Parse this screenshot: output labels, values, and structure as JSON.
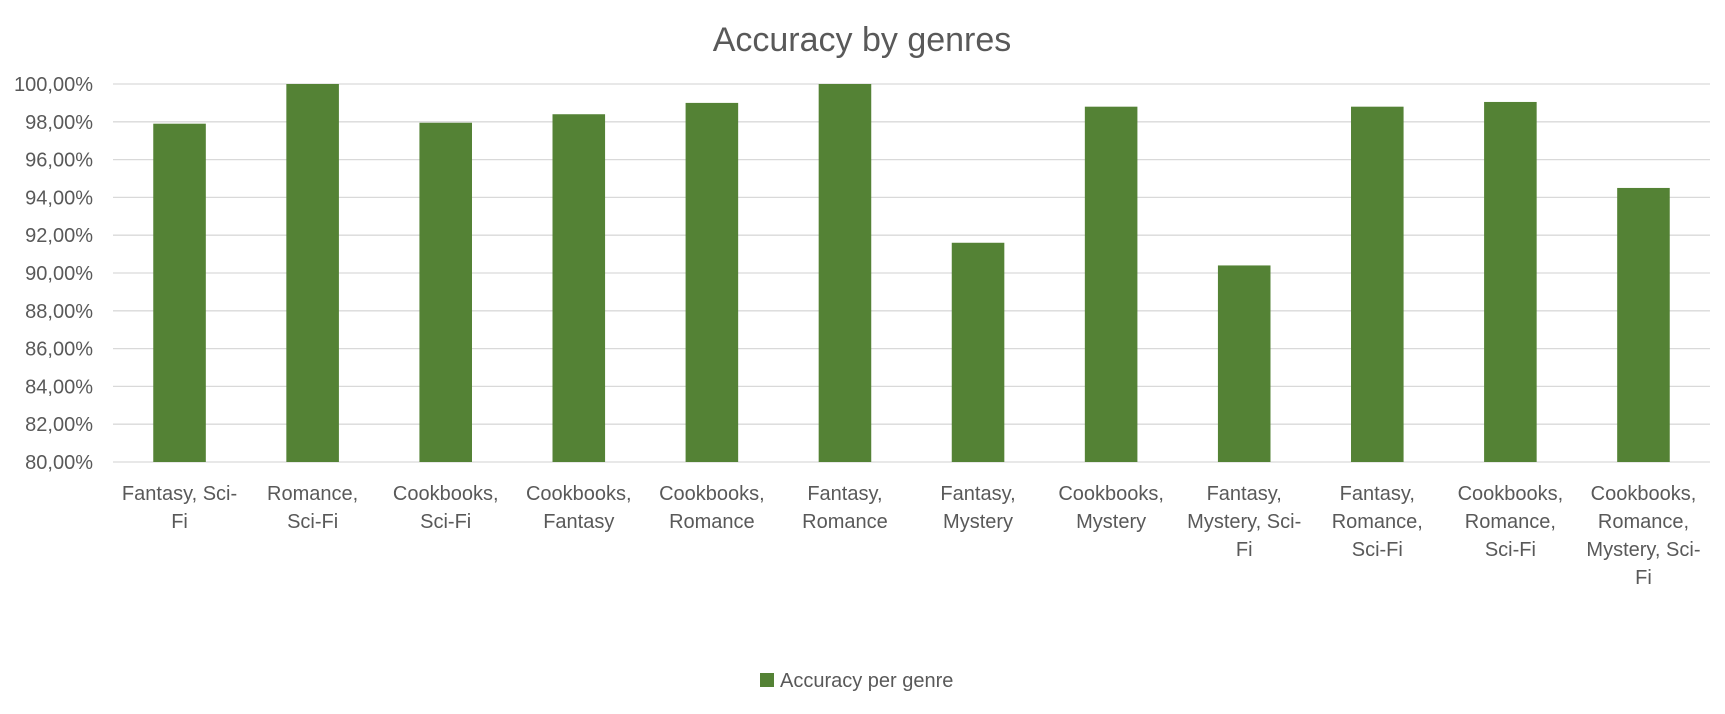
{
  "chart_data": {
    "type": "bar",
    "title": "Accuracy by genres",
    "xlabel": "",
    "ylabel": "",
    "ylim": [
      80,
      100
    ],
    "y_ticks": [
      80,
      82,
      84,
      86,
      88,
      90,
      92,
      94,
      96,
      98,
      100
    ],
    "y_tick_labels": [
      "80,00%",
      "82,00%",
      "84,00%",
      "86,00%",
      "88,00%",
      "90,00%",
      "92,00%",
      "94,00%",
      "96,00%",
      "98,00%",
      "100,00%"
    ],
    "grid": true,
    "legend_position": "bottom",
    "categories": [
      "Fantasy, Sci-Fi",
      "Romance, Sci-Fi",
      "Cookbooks, Sci-Fi",
      "Cookbooks, Fantasy",
      "Cookbooks, Romance",
      "Fantasy, Romance",
      "Fantasy, Mystery",
      "Cookbooks, Mystery",
      "Fantasy, Mystery, Sci-Fi",
      "Fantasy, Romance, Sci-Fi",
      "Cookbooks, Romance, Sci-Fi",
      "Cookbooks, Romance, Mystery, Sci-Fi"
    ],
    "category_label_lines": [
      [
        "Fantasy, Sci-",
        "Fi"
      ],
      [
        "Romance,",
        "Sci-Fi"
      ],
      [
        "Cookbooks,",
        "Sci-Fi"
      ],
      [
        "Cookbooks,",
        "Fantasy"
      ],
      [
        "Cookbooks,",
        "Romance"
      ],
      [
        "Fantasy,",
        "Romance"
      ],
      [
        "Fantasy,",
        "Mystery"
      ],
      [
        "Cookbooks,",
        "Mystery"
      ],
      [
        "Fantasy,",
        "Mystery, Sci-",
        "Fi"
      ],
      [
        "Fantasy,",
        "Romance,",
        "Sci-Fi"
      ],
      [
        "Cookbooks,",
        "Romance,",
        "Sci-Fi"
      ],
      [
        "Cookbooks,",
        "Romance,",
        "Mystery, Sci-",
        "Fi"
      ]
    ],
    "series": [
      {
        "name": "Accuracy per genre",
        "color": "#548235",
        "values": [
          97.9,
          100.0,
          97.95,
          98.4,
          99.0,
          100.0,
          91.6,
          98.8,
          90.4,
          98.8,
          99.05,
          94.5
        ]
      }
    ]
  }
}
